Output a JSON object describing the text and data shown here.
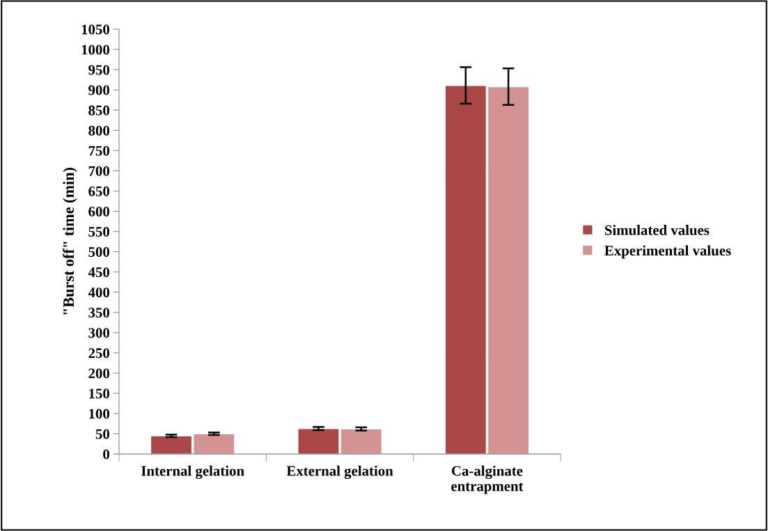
{
  "chart_data": {
    "type": "bar",
    "ylabel": "\"Burst off\" time (min)",
    "categories": [
      "Internal gelation",
      "External gelation",
      "Ca-alginate\nentrapment"
    ],
    "series": [
      {
        "name": "Simulated values",
        "color": "#a94746",
        "values": [
          45,
          63,
          911
        ],
        "errors": [
          3,
          4,
          45
        ]
      },
      {
        "name": "Experimental values",
        "color": "#d39392",
        "values": [
          50,
          62,
          908
        ],
        "errors": [
          3,
          4,
          45
        ]
      }
    ],
    "ylim": [
      0,
      1050
    ],
    "yticks": [
      0,
      50,
      100,
      150,
      200,
      250,
      300,
      350,
      400,
      450,
      500,
      550,
      600,
      650,
      700,
      750,
      800,
      850,
      900,
      950,
      1000,
      1050
    ],
    "grid": false,
    "legend": "right"
  }
}
